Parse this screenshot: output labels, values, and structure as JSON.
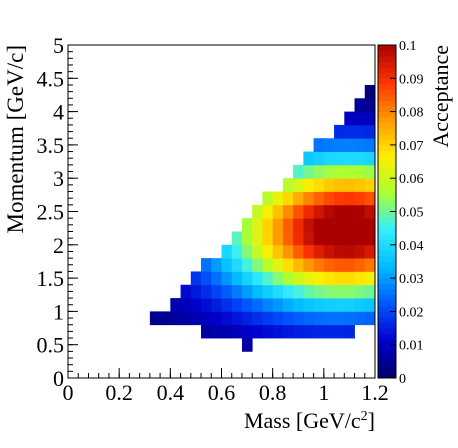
{
  "chart_data": {
    "type": "heatmap",
    "title": "",
    "xlabel": "Mass [GeV/c",
    "xlabel_sup": "2",
    "xlabel_end": "]",
    "ylabel": "Momentum [GeV/c]",
    "zlabel": "Acceptance",
    "xlim": [
      0,
      1.2
    ],
    "ylim": [
      0,
      5
    ],
    "zlim": [
      0,
      0.1
    ],
    "x_ticks": [
      "0",
      "0.2",
      "0.4",
      "0.6",
      "0.8",
      "1",
      "1.2"
    ],
    "y_ticks": [
      "0",
      "0.5",
      "1",
      "1.5",
      "2",
      "2.5",
      "3",
      "3.5",
      "4",
      "4.5",
      "5"
    ],
    "z_ticks": [
      "0",
      "0.01",
      "0.02",
      "0.03",
      "0.04",
      "0.05",
      "0.06",
      "0.07",
      "0.08",
      "0.09",
      "0.1"
    ],
    "x_bin_width": 0.04,
    "y_bin_width": 0.2,
    "x_bin_edges_from": 0.2,
    "y_bin_edges_from": 0.4,
    "colormap": [
      "#000066",
      "#0000cc",
      "#0055ff",
      "#00bbff",
      "#33eeff",
      "#aaff33",
      "#ffee00",
      "#ff9900",
      "#ff3300",
      "#aa0000"
    ],
    "grid": false,
    "legend": "colorbar-right"
  }
}
